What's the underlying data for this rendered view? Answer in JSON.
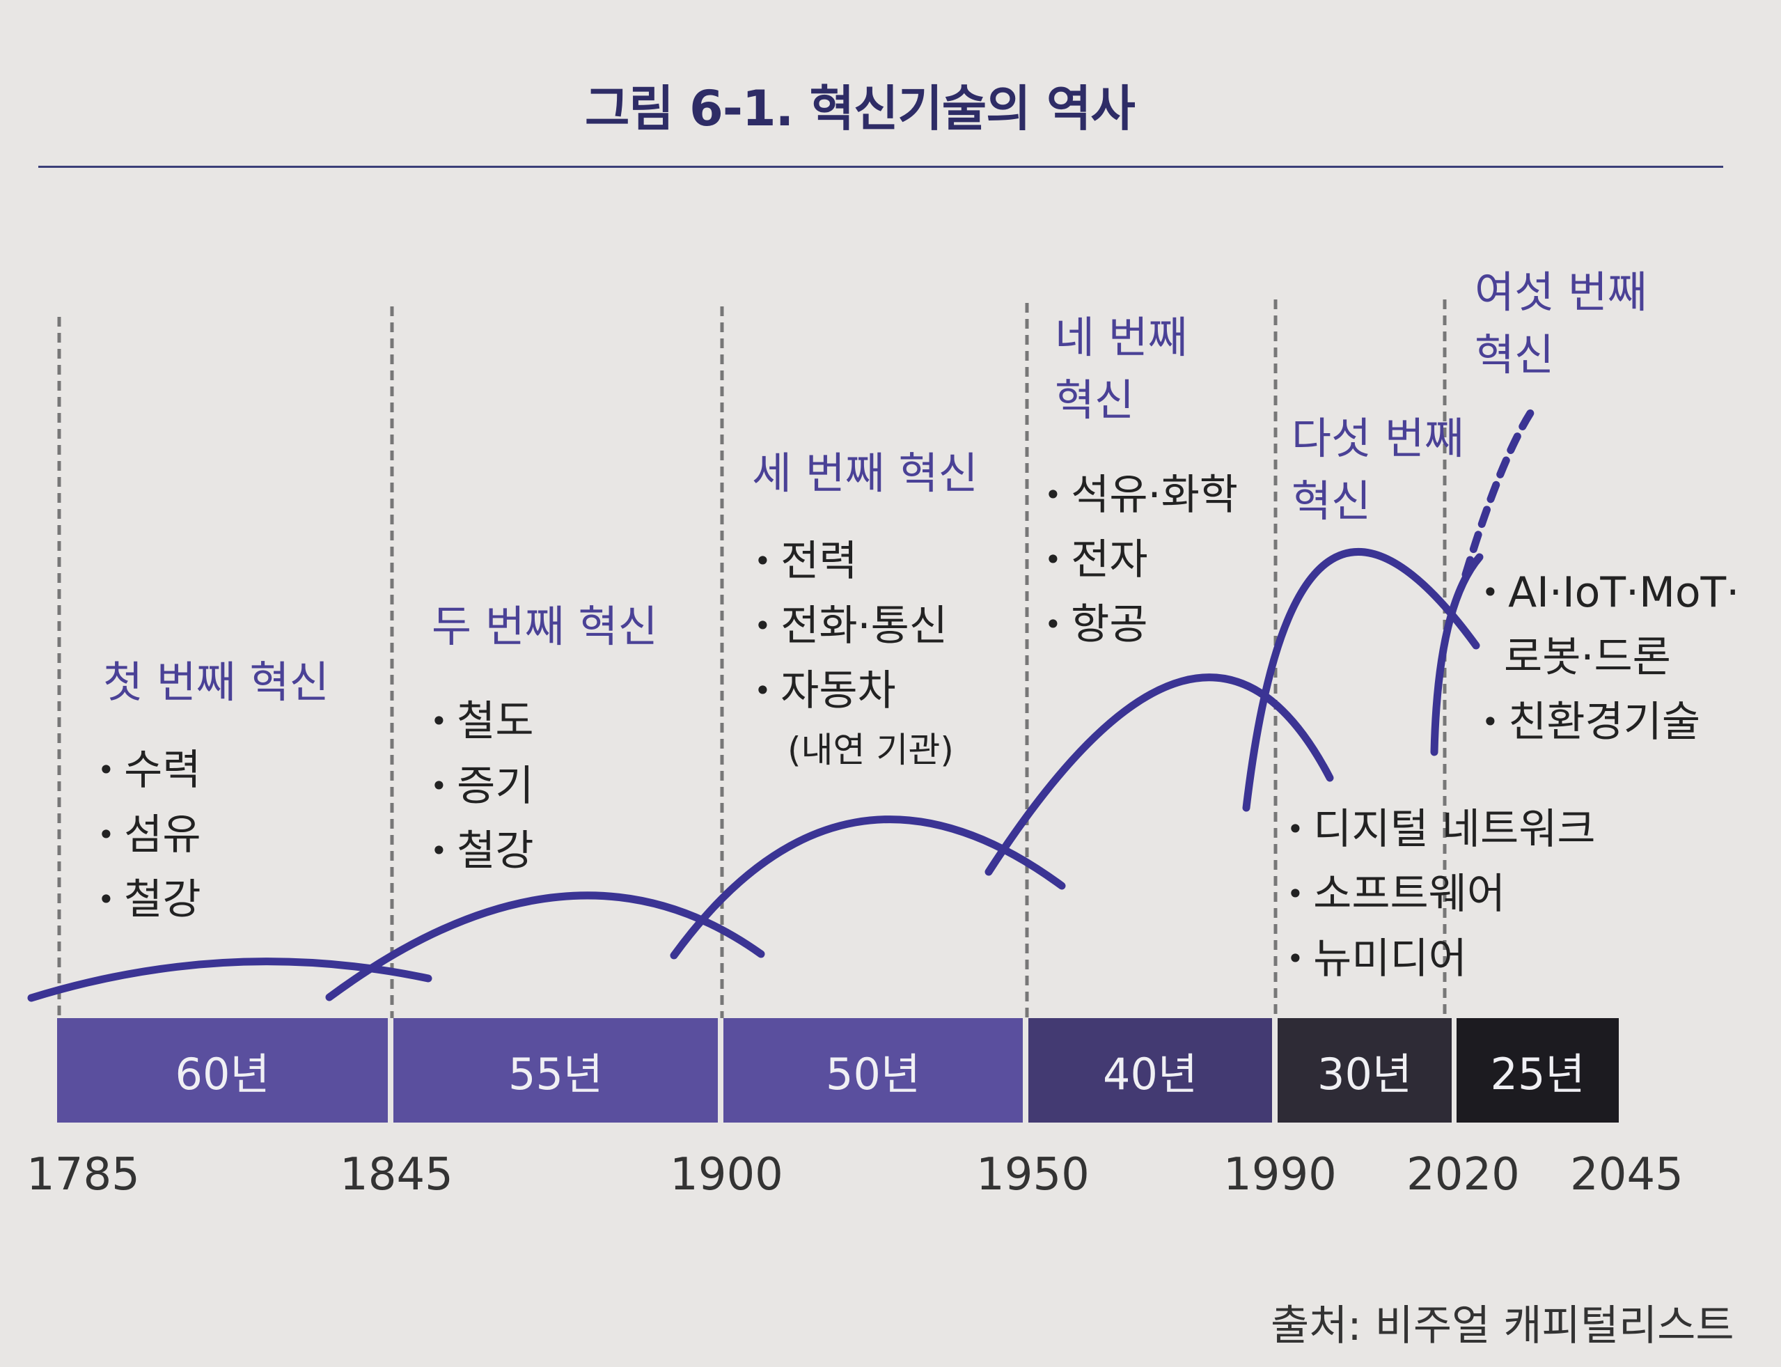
{
  "title": "그림 6-1. 혁신기술의 역사",
  "source": "출처: 비주얼 캐피털리스트",
  "eras": [
    {
      "name": "첫 번째 혁신",
      "items": [
        "수력",
        "섬유",
        "철강"
      ]
    },
    {
      "name": "두 번째 혁신",
      "items": [
        "철도",
        "증기",
        "철강"
      ]
    },
    {
      "name": "세 번째 혁신",
      "items": [
        "전력",
        "전화·통신",
        "자동차"
      ],
      "note": "(내연 기관)"
    },
    {
      "name_lines": [
        "네 번째",
        "혁신"
      ],
      "items": [
        "석유·화학",
        "전자",
        "항공"
      ]
    },
    {
      "name_lines": [
        "다섯 번째",
        "혁신"
      ],
      "items": [
        "디지털 네트워크",
        "소프트웨어",
        "뉴미디어"
      ]
    },
    {
      "name_lines": [
        "여섯 번째",
        "혁신"
      ],
      "items": [
        "AI·IoT·MoT·",
        "로봇·드론",
        "친환경기술"
      ]
    }
  ],
  "durations": [
    "60년",
    "55년",
    "50년",
    "40년",
    "30년",
    "25년"
  ],
  "years": [
    "1785",
    "1845",
    "1900",
    "1950",
    "1990",
    "2020",
    "2045"
  ],
  "colors": {
    "title": "#2e2c66",
    "era_label": "#4a4196",
    "curve": "#3b3494",
    "band_purple": "#5a4f9e",
    "band_dark_purple": "#433a72",
    "band_charcoal": "#2e2b36",
    "band_black": "#1c1b20"
  }
}
